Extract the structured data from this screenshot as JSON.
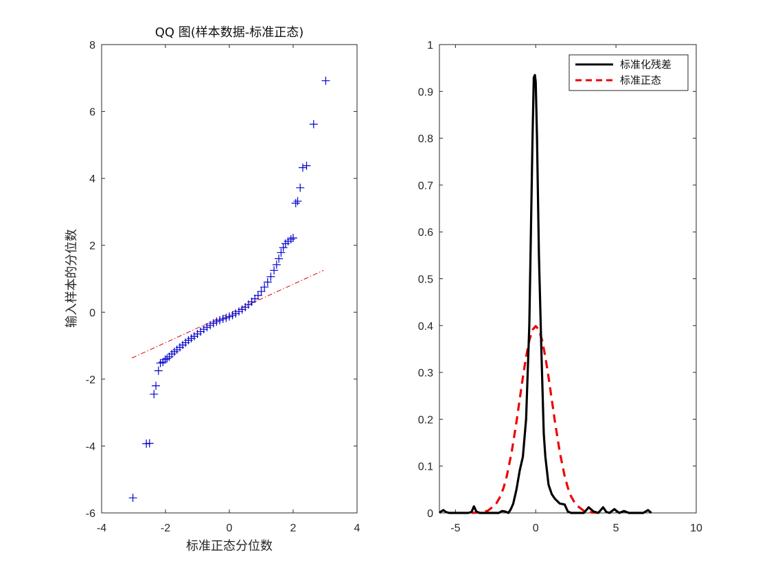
{
  "chart_data": [
    {
      "type": "scatter",
      "title": "QQ 图(样本数据-标准正态)",
      "xlabel": "标准正态分位数",
      "ylabel": "输入样本的分位数",
      "xlim": [
        -4,
        4
      ],
      "ylim": [
        -6,
        8
      ],
      "xticks": [
        -4,
        -2,
        0,
        2,
        4
      ],
      "yticks": [
        -6,
        -4,
        -2,
        0,
        2,
        4,
        6,
        8
      ],
      "xtick_labels": [
        "-4",
        "-2",
        "0",
        "2",
        "4"
      ],
      "ytick_labels": [
        "-6",
        "-4",
        "-2",
        "0",
        "2",
        "4",
        "6",
        "8"
      ],
      "marker": "+",
      "marker_color": "#0000cc",
      "reference_line": {
        "x": [
          -3.05,
          2.95
        ],
        "y": [
          -1.37,
          1.25
        ],
        "color": "#dd0000",
        "style": "dash-dot"
      },
      "points": [
        [
          -3.02,
          -5.55
        ],
        [
          -2.6,
          -3.93
        ],
        [
          -2.5,
          -3.92
        ],
        [
          -2.36,
          -2.45
        ],
        [
          -2.3,
          -2.2
        ],
        [
          -2.22,
          -1.75
        ],
        [
          -2.16,
          -1.52
        ],
        [
          -2.08,
          -1.49
        ],
        [
          -2.01,
          -1.42
        ],
        [
          -1.95,
          -1.38
        ],
        [
          -1.88,
          -1.33
        ],
        [
          -1.8,
          -1.25
        ],
        [
          -1.72,
          -1.18
        ],
        [
          -1.64,
          -1.12
        ],
        [
          -1.55,
          -1.05
        ],
        [
          -1.46,
          -0.98
        ],
        [
          -1.37,
          -0.91
        ],
        [
          -1.28,
          -0.84
        ],
        [
          -1.19,
          -0.78
        ],
        [
          -1.1,
          -0.72
        ],
        [
          -1.0,
          -0.65
        ],
        [
          -0.9,
          -0.58
        ],
        [
          -0.8,
          -0.51
        ],
        [
          -0.7,
          -0.45
        ],
        [
          -0.6,
          -0.39
        ],
        [
          -0.5,
          -0.33
        ],
        [
          -0.4,
          -0.28
        ],
        [
          -0.3,
          -0.24
        ],
        [
          -0.2,
          -0.2
        ],
        [
          -0.1,
          -0.17
        ],
        [
          0.0,
          -0.13
        ],
        [
          0.1,
          -0.09
        ],
        [
          0.2,
          -0.04
        ],
        [
          0.3,
          0.02
        ],
        [
          0.4,
          0.08
        ],
        [
          0.5,
          0.15
        ],
        [
          0.6,
          0.23
        ],
        [
          0.7,
          0.31
        ],
        [
          0.8,
          0.4
        ],
        [
          0.9,
          0.5
        ],
        [
          1.0,
          0.62
        ],
        [
          1.1,
          0.75
        ],
        [
          1.2,
          0.9
        ],
        [
          1.3,
          1.06
        ],
        [
          1.4,
          1.25
        ],
        [
          1.48,
          1.42
        ],
        [
          1.55,
          1.6
        ],
        [
          1.62,
          1.78
        ],
        [
          1.69,
          1.93
        ],
        [
          1.76,
          2.05
        ],
        [
          1.84,
          2.12
        ],
        [
          1.93,
          2.18
        ],
        [
          2.0,
          2.22
        ],
        [
          2.08,
          3.26
        ],
        [
          2.14,
          3.32
        ],
        [
          2.22,
          3.72
        ],
        [
          2.3,
          4.32
        ],
        [
          2.42,
          4.38
        ],
        [
          2.64,
          5.62
        ],
        [
          3.02,
          6.92
        ]
      ]
    },
    {
      "type": "line",
      "xlim": [
        -6,
        10
      ],
      "ylim": [
        0,
        1
      ],
      "xticks": [
        -5,
        0,
        5,
        10
      ],
      "yticks": [
        0,
        0.1,
        0.2,
        0.3,
        0.4,
        0.5,
        0.6,
        0.7,
        0.8,
        0.9,
        1
      ],
      "xtick_labels": [
        "-5",
        "0",
        "5",
        "10"
      ],
      "ytick_labels": [
        "0",
        "0.1",
        "0.2",
        "0.3",
        "0.4",
        "0.5",
        "0.6",
        "0.7",
        "0.8",
        "0.9",
        "1"
      ],
      "legend_position": "top-right",
      "series": [
        {
          "name": "标准化残差",
          "color": "#000000",
          "style": "solid",
          "x": [
            -6.0,
            -5.9,
            -5.75,
            -5.6,
            -5.4,
            -5.2,
            -5.0,
            -4.8,
            -4.6,
            -4.4,
            -4.2,
            -4.0,
            -3.85,
            -3.7,
            -3.5,
            -3.3,
            -3.1,
            -2.9,
            -2.7,
            -2.5,
            -2.3,
            -2.1,
            -1.9,
            -1.7,
            -1.55,
            -1.4,
            -1.2,
            -1.0,
            -0.8,
            -0.6,
            -0.4,
            -0.3,
            -0.2,
            -0.12,
            -0.05,
            0.0,
            0.08,
            0.2,
            0.35,
            0.5,
            0.6,
            0.7,
            0.8,
            1.0,
            1.2,
            1.5,
            1.8,
            2.0,
            2.2,
            2.4,
            2.7,
            3.0,
            3.3,
            3.6,
            3.9,
            4.2,
            4.4,
            4.6,
            4.9,
            5.2,
            5.5,
            5.8,
            6.1,
            6.4,
            6.7,
            7.0,
            7.2
          ],
          "y": [
            0.0,
            0.003,
            0.006,
            0.002,
            0.0,
            0.0,
            0.0,
            0.0,
            0.0,
            0.0,
            0.0,
            0.002,
            0.014,
            0.003,
            0.0,
            0.0,
            0.0,
            0.0,
            0.0,
            0.0,
            0.0,
            0.004,
            0.003,
            0.0,
            0.008,
            0.02,
            0.05,
            0.09,
            0.12,
            0.2,
            0.4,
            0.6,
            0.8,
            0.93,
            0.935,
            0.92,
            0.8,
            0.55,
            0.35,
            0.17,
            0.12,
            0.09,
            0.06,
            0.04,
            0.03,
            0.02,
            0.018,
            0.003,
            0.0,
            0.0,
            0.0,
            0.0,
            0.012,
            0.003,
            0.0,
            0.012,
            0.002,
            0.0,
            0.008,
            0.0,
            0.004,
            0.0,
            0.0,
            0.0,
            0.0,
            0.006,
            0.0
          ]
        },
        {
          "name": "标准正态",
          "color": "#ee0000",
          "style": "dashed",
          "x": [
            -4.0,
            -3.5,
            -3.0,
            -2.5,
            -2.2,
            -2.0,
            -1.8,
            -1.5,
            -1.2,
            -1.0,
            -0.8,
            -0.6,
            -0.4,
            -0.2,
            0.0,
            0.2,
            0.4,
            0.6,
            0.8,
            1.0,
            1.2,
            1.5,
            1.8,
            2.0,
            2.2,
            2.5,
            3.0,
            3.5,
            4.0
          ],
          "y": [
            0.0001,
            0.0009,
            0.0044,
            0.0175,
            0.0355,
            0.054,
            0.079,
            0.1295,
            0.1942,
            0.242,
            0.2897,
            0.3332,
            0.3683,
            0.391,
            0.3989,
            0.391,
            0.3683,
            0.3332,
            0.2897,
            0.242,
            0.1942,
            0.1295,
            0.079,
            0.054,
            0.0355,
            0.0175,
            0.0044,
            0.0009,
            0.0001
          ]
        }
      ]
    }
  ]
}
